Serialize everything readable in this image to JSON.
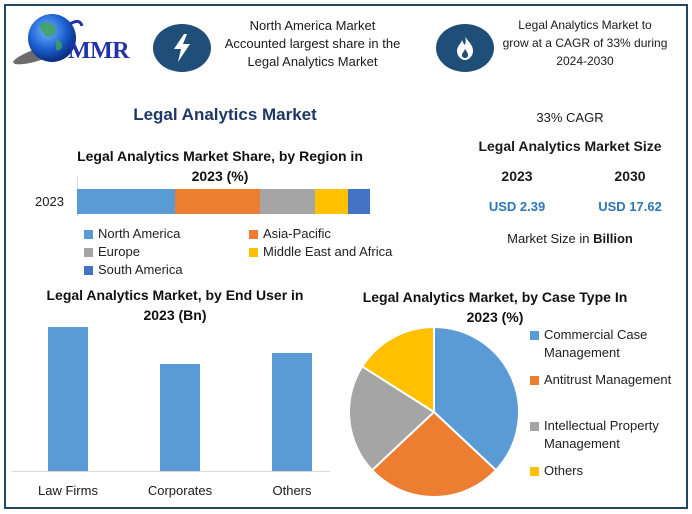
{
  "header": {
    "logo_text": "MMR",
    "card1": {
      "icon": "lightning-bolt-icon",
      "text_lines": [
        "North America Market",
        "Accounted largest share in the",
        "Legal Analytics Market"
      ]
    },
    "card2": {
      "icon": "flame-icon",
      "text_lines": [
        "Legal Analytics Market to",
        "grow at a CAGR of 33% during",
        "2024-2030"
      ]
    }
  },
  "main_title": "Legal Analytics Market",
  "market_size": {
    "cagr_label": "33% CAGR",
    "title": "Legal Analytics Market Size",
    "years": [
      {
        "year": "2023",
        "value": "USD 2.39"
      },
      {
        "year": "2030",
        "value": "USD 17.62"
      }
    ],
    "unit_prefix": "Market Size in ",
    "unit_bold": "Billion"
  },
  "colors": {
    "blue": "#5b9bd5",
    "orange": "#ed7d31",
    "gray": "#a5a5a5",
    "yellow": "#ffc000",
    "dark_blue": "#4472c4",
    "navy": "#1f4e79",
    "title_navy": "#1f3864",
    "value_blue": "#2e75b6"
  },
  "chart_data": [
    {
      "type": "bar",
      "orientation": "horizontal-stacked",
      "title": "Legal Analytics Market Share, by Region in 2023 (%)",
      "categories": [
        "2023"
      ],
      "series": [
        {
          "name": "North America",
          "values": [
            33.4
          ],
          "color": "#5b9bd5"
        },
        {
          "name": "Asia-Pacific",
          "values": [
            29.0
          ],
          "color": "#ed7d31"
        },
        {
          "name": "Europe",
          "values": [
            18.8
          ],
          "color": "#a5a5a5"
        },
        {
          "name": "Middle East and Africa",
          "values": [
            11.3
          ],
          "color": "#ffc000"
        },
        {
          "name": "South America",
          "values": [
            7.5
          ],
          "color": "#4472c4"
        }
      ],
      "xlabel": "",
      "ylabel": "",
      "grid": false,
      "legend_position": "bottom"
    },
    {
      "type": "bar",
      "title": "Legal Analytics Market, by End User in 2023 (Bn)",
      "categories": [
        "Law Firms",
        "Corporates",
        "Others"
      ],
      "values": [
        0.93,
        0.69,
        0.76
      ],
      "color": "#5b9bd5",
      "xlabel": "",
      "ylabel": "",
      "grid": false,
      "legend_position": "none"
    },
    {
      "type": "pie",
      "title": "Legal Analytics Market, by Case Type In 2023 (%)",
      "categories": [
        "Commercial Case Management",
        "Antitrust Management",
        "Intellectual Property Management",
        "Others"
      ],
      "values": [
        37,
        26,
        21,
        16
      ],
      "colors": [
        "#5b9bd5",
        "#ed7d31",
        "#a5a5a5",
        "#ffc000"
      ],
      "legend_position": "right"
    }
  ]
}
